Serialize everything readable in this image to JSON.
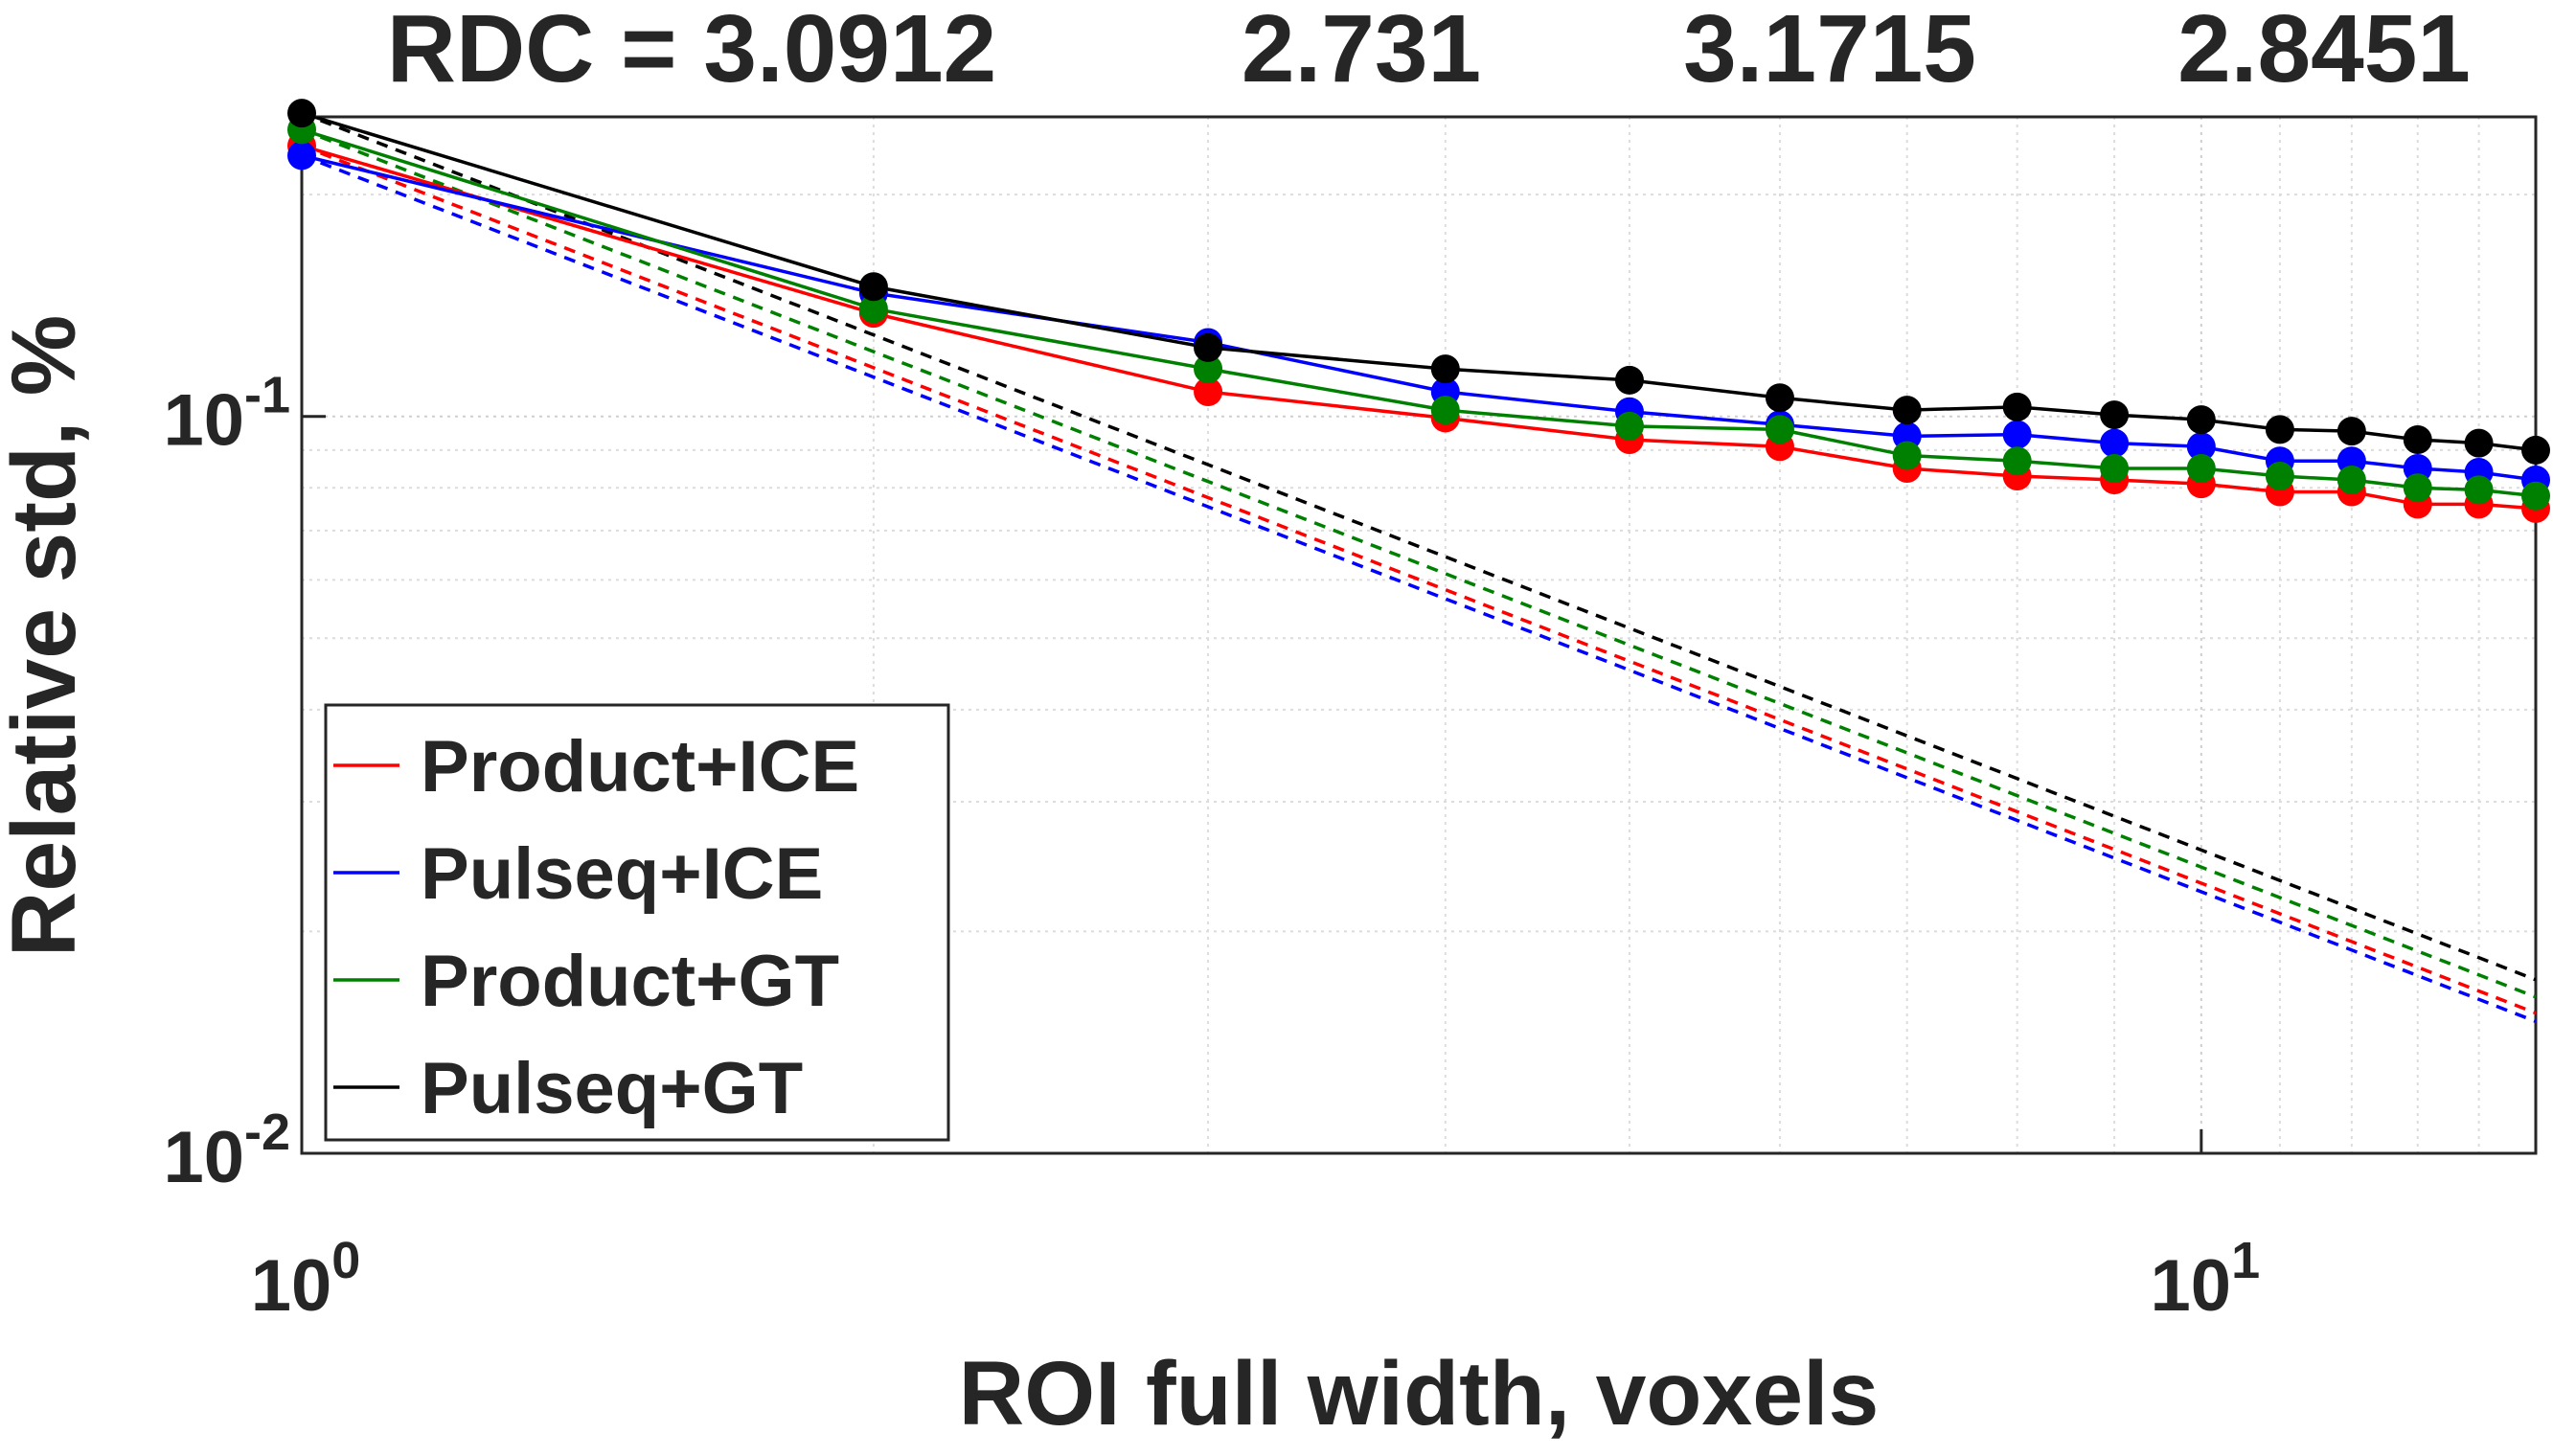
{
  "chart_data": {
    "type": "line",
    "annotations": [
      "RDC = 3.0912",
      "2.731",
      "3.1715",
      "2.8451"
    ],
    "xlabel": "ROI full width, voxels",
    "ylabel": "Relative std, %",
    "x": [
      1,
      2,
      3,
      4,
      5,
      6,
      7,
      8,
      9,
      10,
      11,
      12,
      13,
      14,
      15
    ],
    "series": [
      {
        "name": "Product+ICE",
        "color": "#ff0000",
        "values": [
          0.233,
          0.138,
          0.108,
          0.0995,
          0.093,
          0.091,
          0.085,
          0.083,
          0.082,
          0.081,
          0.079,
          0.079,
          0.076,
          0.076,
          0.075
        ]
      },
      {
        "name": "Pulseq+ICE",
        "color": "#0000ff",
        "values": [
          0.226,
          0.147,
          0.126,
          0.108,
          0.1015,
          0.0975,
          0.094,
          0.0945,
          0.092,
          0.091,
          0.087,
          0.087,
          0.085,
          0.084,
          0.082
        ]
      },
      {
        "name": "Product+GT",
        "color": "#008000",
        "values": [
          0.245,
          0.14,
          0.116,
          0.102,
          0.097,
          0.096,
          0.0885,
          0.087,
          0.085,
          0.085,
          0.083,
          0.082,
          0.08,
          0.0795,
          0.078
        ]
      },
      {
        "name": "Pulseq+GT",
        "color": "#000000",
        "values": [
          0.258,
          0.15,
          0.124,
          0.116,
          0.112,
          0.106,
          0.102,
          0.103,
          0.1005,
          0.099,
          0.096,
          0.0955,
          0.093,
          0.092,
          0.09
        ]
      }
    ],
    "reference_x": [
      1,
      15
    ],
    "reference_lines": [
      {
        "color": "#ff0000",
        "values": [
          0.233,
          0.0155
        ]
      },
      {
        "color": "#0000ff",
        "values": [
          0.226,
          0.0151
        ]
      },
      {
        "color": "#008000",
        "values": [
          0.245,
          0.0163
        ]
      },
      {
        "color": "#000000",
        "values": [
          0.258,
          0.0172
        ]
      }
    ],
    "xscale": "log",
    "yscale": "log",
    "xlim": [
      1,
      15
    ],
    "ylim": [
      0.01,
      0.255
    ],
    "xticks": [
      {
        "value": 1,
        "label": "10",
        "exponent": "0"
      },
      {
        "value": 10,
        "label": "10",
        "exponent": "1"
      }
    ],
    "yticks": [
      {
        "value": 0.01,
        "label": "10",
        "exponent": "-2"
      },
      {
        "value": 0.1,
        "label": "10",
        "exponent": "-1"
      }
    ],
    "xminorticks": [
      2,
      3,
      4,
      5,
      6,
      7,
      8,
      9,
      11,
      12,
      13,
      14
    ],
    "yminorticks": [
      0.02,
      0.03,
      0.04,
      0.05,
      0.06,
      0.07,
      0.08,
      0.09,
      0.2
    ],
    "grid": true,
    "legend": "lower left"
  }
}
